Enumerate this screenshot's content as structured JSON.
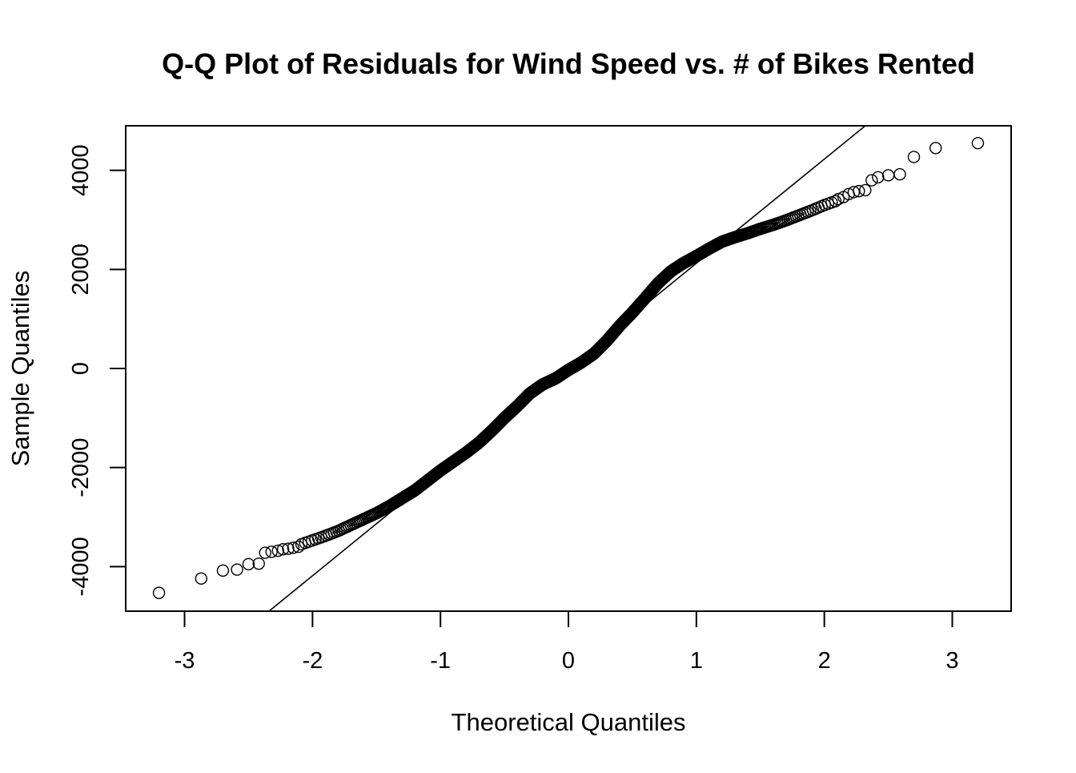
{
  "chart_data": {
    "type": "scatter",
    "title": "Q-Q Plot of Residuals for Wind Speed vs. # of Bikes Rented",
    "xlabel": "Theoretical Quantiles",
    "ylabel": "Sample Quantiles",
    "xlim": [
      -3.46,
      3.46
    ],
    "ylim": [
      -4900,
      4900
    ],
    "xticks": [
      -3,
      -2,
      -1,
      0,
      1,
      2,
      3
    ],
    "xtick_labels": [
      "-3",
      "-2",
      "-1",
      "0",
      "1",
      "2",
      "3"
    ],
    "yticks": [
      -4000,
      -2000,
      0,
      2000,
      4000
    ],
    "ytick_labels": [
      "-4000",
      "-2000",
      "0",
      "2000",
      "4000"
    ],
    "grid": false,
    "legend": "none",
    "marker": "open-circle",
    "reference_line": {
      "description": "qqline",
      "points": [
        [
          -2.34,
          -4900
        ],
        [
          2.32,
          4900
        ]
      ]
    },
    "sample_count": 731,
    "quantile_curve": [
      [
        -2.3,
        -3700
      ],
      [
        -2.2,
        -3640
      ],
      [
        -2.1,
        -3560
      ],
      [
        -2.0,
        -3470
      ],
      [
        -1.9,
        -3380
      ],
      [
        -1.8,
        -3280
      ],
      [
        -1.7,
        -3160
      ],
      [
        -1.6,
        -3040
      ],
      [
        -1.5,
        -2920
      ],
      [
        -1.4,
        -2780
      ],
      [
        -1.3,
        -2620
      ],
      [
        -1.2,
        -2460
      ],
      [
        -1.1,
        -2260
      ],
      [
        -1.0,
        -2060
      ],
      [
        -0.9,
        -1880
      ],
      [
        -0.8,
        -1700
      ],
      [
        -0.7,
        -1500
      ],
      [
        -0.6,
        -1260
      ],
      [
        -0.5,
        -1000
      ],
      [
        -0.4,
        -760
      ],
      [
        -0.3,
        -500
      ],
      [
        -0.2,
        -320
      ],
      [
        -0.1,
        -200
      ],
      [
        0.0,
        -30
      ],
      [
        0.1,
        120
      ],
      [
        0.2,
        300
      ],
      [
        0.3,
        560
      ],
      [
        0.4,
        860
      ],
      [
        0.5,
        1130
      ],
      [
        0.6,
        1420
      ],
      [
        0.7,
        1720
      ],
      [
        0.8,
        1960
      ],
      [
        0.9,
        2130
      ],
      [
        1.0,
        2270
      ],
      [
        1.1,
        2420
      ],
      [
        1.2,
        2560
      ],
      [
        1.3,
        2650
      ],
      [
        1.4,
        2730
      ],
      [
        1.5,
        2820
      ],
      [
        1.6,
        2900
      ],
      [
        1.7,
        2990
      ],
      [
        1.8,
        3090
      ],
      [
        1.9,
        3190
      ],
      [
        2.0,
        3300
      ],
      [
        2.1,
        3390
      ]
    ],
    "lower_tail_points": [
      [
        -3.2,
        -4530
      ],
      [
        -2.87,
        -4240
      ],
      [
        -2.7,
        -4080
      ],
      [
        -2.59,
        -4060
      ],
      [
        -2.5,
        -3950
      ],
      [
        -2.42,
        -3940
      ],
      [
        -2.37,
        -3720
      ],
      [
        -2.32,
        -3700
      ],
      [
        -2.27,
        -3680
      ],
      [
        -2.23,
        -3650
      ],
      [
        -2.19,
        -3640
      ],
      [
        -2.15,
        -3620
      ],
      [
        -2.11,
        -3600
      ]
    ],
    "upper_tail_points": [
      [
        2.11,
        3420
      ],
      [
        2.15,
        3460
      ],
      [
        2.19,
        3520
      ],
      [
        2.23,
        3560
      ],
      [
        2.27,
        3580
      ],
      [
        2.32,
        3600
      ],
      [
        2.37,
        3800
      ],
      [
        2.42,
        3860
      ],
      [
        2.5,
        3900
      ],
      [
        2.59,
        3920
      ],
      [
        2.7,
        4270
      ],
      [
        2.87,
        4450
      ],
      [
        3.2,
        4550
      ]
    ]
  }
}
